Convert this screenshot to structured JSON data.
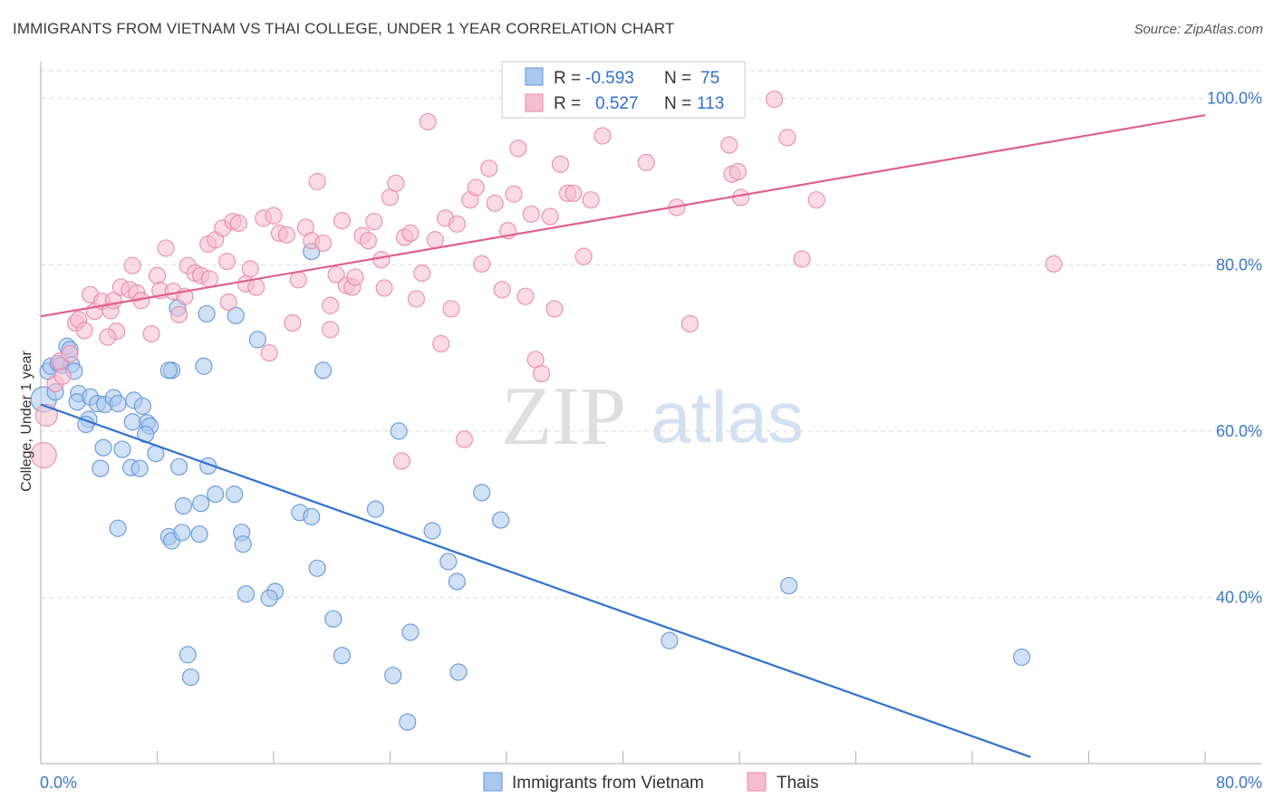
{
  "header": {
    "title": "IMMIGRANTS FROM VIETNAM VS THAI COLLEGE, UNDER 1 YEAR CORRELATION CHART",
    "source": "Source: ZipAtlas.com"
  },
  "watermark": {
    "zip": "ZIP",
    "atlas": "atlas"
  },
  "legend_box": {
    "rows": [
      {
        "r_label": "R =",
        "r_value": "-0.593",
        "n_label": "N =",
        "n_value": "75"
      },
      {
        "r_label": "R =",
        "r_value": "0.527",
        "n_label": "N =",
        "n_value": "113"
      }
    ]
  },
  "bottom_legend": {
    "items": [
      "Immigrants from Vietnam",
      "Thais"
    ]
  },
  "colors": {
    "blue_fill": "#a9c8ef",
    "blue_stroke": "#5e95d9",
    "blue_line": "#2f72d0",
    "pink_fill": "#f6bcd0",
    "pink_stroke": "#e889ab",
    "pink_line": "#e0608c",
    "tick_text": "#3a78c9",
    "grid": "#dddddd"
  },
  "chart_data": {
    "type": "scatter",
    "title": "IMMIGRANTS FROM VIETNAM VS THAI COLLEGE, UNDER 1 YEAR CORRELATION CHART",
    "xlabel": "",
    "ylabel": "College, Under 1 year",
    "xlim": [
      0,
      80
    ],
    "ylim": [
      20,
      104
    ],
    "x_tick_labels": [
      "0.0%",
      "80.0%"
    ],
    "y_ticks": [
      40,
      60,
      80,
      100
    ],
    "y_tick_labels": [
      "40.0%",
      "60.0%",
      "80.0%",
      "100.0%"
    ],
    "grid": true,
    "legend_position": "top-center",
    "series": [
      {
        "name": "Immigrants from Vietnam",
        "r": -0.593,
        "n": 75,
        "trend": {
          "x": [
            0,
            68
          ],
          "y": [
            63.2,
            20.8
          ]
        },
        "points": [
          [
            0.2,
            63.8,
            14
          ],
          [
            0.5,
            67.2,
            9
          ],
          [
            0.7,
            67.8,
            9
          ],
          [
            1.2,
            68.1,
            9
          ],
          [
            1.4,
            67.9,
            9
          ],
          [
            1.8,
            70.2,
            9
          ],
          [
            2.0,
            69.8,
            9
          ],
          [
            2.1,
            68.0,
            9
          ],
          [
            2.3,
            67.2,
            9
          ],
          [
            1.0,
            64.7,
            9
          ],
          [
            2.6,
            64.5,
            9
          ],
          [
            2.5,
            63.5,
            9
          ],
          [
            3.3,
            61.4,
            9
          ],
          [
            3.4,
            64.1,
            9
          ],
          [
            3.9,
            63.3,
            9
          ],
          [
            3.1,
            60.8,
            9
          ],
          [
            4.4,
            63.2,
            9
          ],
          [
            5.0,
            64.0,
            9
          ],
          [
            5.3,
            63.3,
            9
          ],
          [
            6.4,
            63.7,
            9
          ],
          [
            7.0,
            63.0,
            9
          ],
          [
            7.3,
            61.0,
            9
          ],
          [
            7.5,
            60.6,
            9
          ],
          [
            7.2,
            59.6,
            9
          ],
          [
            6.3,
            61.1,
            9
          ],
          [
            4.3,
            58.0,
            9
          ],
          [
            5.6,
            57.8,
            9
          ],
          [
            7.9,
            57.3,
            9
          ],
          [
            4.1,
            55.5,
            9
          ],
          [
            6.2,
            55.6,
            9
          ],
          [
            6.8,
            55.5,
            9
          ],
          [
            9.5,
            55.7,
            9
          ],
          [
            11.5,
            55.8,
            9
          ],
          [
            12.0,
            52.4,
            9
          ],
          [
            11.0,
            51.3,
            9
          ],
          [
            13.3,
            52.4,
            9
          ],
          [
            9.8,
            51.0,
            9
          ],
          [
            5.3,
            48.3,
            9
          ],
          [
            8.8,
            47.3,
            9
          ],
          [
            9.0,
            46.8,
            9
          ],
          [
            9.7,
            47.8,
            9
          ],
          [
            10.9,
            47.6,
            9
          ],
          [
            13.8,
            47.8,
            9
          ],
          [
            13.9,
            46.4,
            9
          ],
          [
            17.8,
            50.2,
            9
          ],
          [
            18.6,
            49.7,
            9
          ],
          [
            23.0,
            50.6,
            9
          ],
          [
            26.9,
            48.0,
            9
          ],
          [
            30.3,
            52.6,
            9
          ],
          [
            31.6,
            49.3,
            9
          ],
          [
            24.6,
            60.0,
            9
          ],
          [
            19.0,
            43.5,
            9
          ],
          [
            16.1,
            40.7,
            9
          ],
          [
            28.0,
            44.3,
            9
          ],
          [
            28.6,
            41.9,
            9
          ],
          [
            14.1,
            40.4,
            9
          ],
          [
            15.7,
            39.9,
            9
          ],
          [
            20.1,
            37.4,
            9
          ],
          [
            25.4,
            35.8,
            9
          ],
          [
            10.1,
            33.1,
            9
          ],
          [
            10.3,
            30.4,
            9
          ],
          [
            20.7,
            33.0,
            9
          ],
          [
            24.2,
            30.6,
            9
          ],
          [
            28.7,
            31.0,
            9
          ],
          [
            43.2,
            34.8,
            9
          ],
          [
            51.4,
            41.4,
            9
          ],
          [
            67.4,
            32.8,
            9
          ],
          [
            25.2,
            25.0,
            9
          ],
          [
            9.0,
            67.3,
            9
          ],
          [
            11.2,
            67.8,
            9
          ],
          [
            8.8,
            67.3,
            9
          ],
          [
            14.9,
            71.0,
            9
          ],
          [
            19.4,
            67.3,
            9
          ],
          [
            11.4,
            74.1,
            9
          ],
          [
            13.4,
            73.9,
            9
          ],
          [
            9.4,
            74.8,
            9
          ],
          [
            18.6,
            81.6,
            9
          ]
        ]
      },
      {
        "name": "Thais",
        "r": 0.527,
        "n": 113,
        "trend": {
          "x": [
            0,
            80
          ],
          "y": [
            73.8,
            98.0
          ]
        },
        "points": [
          [
            0.2,
            57.1,
            14
          ],
          [
            0.4,
            61.9,
            12
          ],
          [
            1.0,
            65.7,
            9
          ],
          [
            1.5,
            66.6,
            9
          ],
          [
            1.3,
            68.4,
            9
          ],
          [
            2.0,
            69.3,
            9
          ],
          [
            2.4,
            73.0,
            9
          ],
          [
            2.6,
            73.4,
            9
          ],
          [
            3.4,
            76.4,
            9
          ],
          [
            3.7,
            74.4,
            9
          ],
          [
            4.2,
            75.6,
            9
          ],
          [
            4.8,
            74.5,
            9
          ],
          [
            5.0,
            75.7,
            9
          ],
          [
            5.5,
            77.3,
            9
          ],
          [
            6.1,
            77.0,
            9
          ],
          [
            6.6,
            76.6,
            9
          ],
          [
            6.9,
            75.7,
            9
          ],
          [
            6.3,
            79.9,
            9
          ],
          [
            7.6,
            71.7,
            9
          ],
          [
            8.0,
            78.7,
            9
          ],
          [
            8.2,
            76.9,
            9
          ],
          [
            8.6,
            82.0,
            9
          ],
          [
            9.1,
            76.8,
            9
          ],
          [
            9.5,
            74.0,
            9
          ],
          [
            9.9,
            76.2,
            9
          ],
          [
            10.1,
            79.9,
            9
          ],
          [
            10.6,
            79.0,
            9
          ],
          [
            11.0,
            78.7,
            9
          ],
          [
            11.5,
            82.5,
            9
          ],
          [
            12.0,
            83.0,
            9
          ],
          [
            12.5,
            84.4,
            9
          ],
          [
            12.9,
            75.5,
            9
          ],
          [
            13.2,
            85.2,
            9
          ],
          [
            13.6,
            85.0,
            9
          ],
          [
            14.1,
            77.7,
            9
          ],
          [
            14.4,
            79.5,
            9
          ],
          [
            14.8,
            77.3,
            9
          ],
          [
            15.3,
            85.6,
            9
          ],
          [
            15.7,
            69.4,
            9
          ],
          [
            16.0,
            85.9,
            9
          ],
          [
            16.4,
            83.8,
            9
          ],
          [
            16.9,
            83.6,
            9
          ],
          [
            17.3,
            73.0,
            9
          ],
          [
            17.7,
            78.2,
            9
          ],
          [
            18.2,
            84.5,
            9
          ],
          [
            18.6,
            82.9,
            9
          ],
          [
            19.0,
            90.0,
            9
          ],
          [
            19.4,
            82.6,
            9
          ],
          [
            19.9,
            72.2,
            9
          ],
          [
            20.3,
            78.8,
            9
          ],
          [
            20.7,
            85.3,
            9
          ],
          [
            21.0,
            77.5,
            9
          ],
          [
            21.4,
            77.3,
            9
          ],
          [
            21.6,
            78.5,
            9
          ],
          [
            22.1,
            83.5,
            9
          ],
          [
            22.5,
            82.9,
            9
          ],
          [
            22.9,
            85.2,
            9
          ],
          [
            23.4,
            80.6,
            9
          ],
          [
            23.6,
            77.2,
            9
          ],
          [
            24.0,
            88.1,
            9
          ],
          [
            24.4,
            89.8,
            9
          ],
          [
            24.8,
            56.4,
            9
          ],
          [
            25.0,
            83.3,
            9
          ],
          [
            25.4,
            83.8,
            9
          ],
          [
            25.8,
            75.9,
            9
          ],
          [
            26.2,
            79.0,
            9
          ],
          [
            26.6,
            97.2,
            9
          ],
          [
            27.1,
            83.0,
            9
          ],
          [
            27.5,
            70.5,
            9
          ],
          [
            27.8,
            85.6,
            9
          ],
          [
            28.2,
            74.7,
            9
          ],
          [
            28.6,
            84.9,
            9
          ],
          [
            29.1,
            59.0,
            9
          ],
          [
            29.5,
            87.8,
            9
          ],
          [
            29.9,
            89.3,
            9
          ],
          [
            30.3,
            80.1,
            9
          ],
          [
            30.8,
            91.6,
            9
          ],
          [
            31.2,
            87.4,
            9
          ],
          [
            31.7,
            77.0,
            9
          ],
          [
            32.1,
            84.1,
            9
          ],
          [
            32.5,
            88.5,
            9
          ],
          [
            32.8,
            94.0,
            9
          ],
          [
            33.3,
            76.2,
            9
          ],
          [
            33.7,
            86.1,
            9
          ],
          [
            34.0,
            68.6,
            9
          ],
          [
            34.4,
            66.9,
            9
          ],
          [
            35.0,
            85.8,
            9
          ],
          [
            35.3,
            74.7,
            9
          ],
          [
            35.7,
            92.1,
            9
          ],
          [
            36.2,
            88.6,
            9
          ],
          [
            36.6,
            88.6,
            9
          ],
          [
            37.3,
            81.0,
            9
          ],
          [
            37.8,
            87.8,
            9
          ],
          [
            38.6,
            95.5,
            9
          ],
          [
            40.2,
            98.9,
            9
          ],
          [
            41.6,
            92.3,
            9
          ],
          [
            43.7,
            86.9,
            9
          ],
          [
            44.6,
            72.9,
            9
          ],
          [
            47.5,
            90.9,
            9
          ],
          [
            47.9,
            91.2,
            9
          ],
          [
            48.1,
            88.1,
            9
          ],
          [
            47.3,
            94.4,
            9
          ],
          [
            50.4,
            99.9,
            9
          ],
          [
            51.3,
            95.3,
            9
          ],
          [
            52.3,
            80.7,
            9
          ],
          [
            53.3,
            87.8,
            9
          ],
          [
            69.6,
            80.1,
            9
          ],
          [
            5.2,
            72.0,
            9
          ],
          [
            4.6,
            71.3,
            9
          ],
          [
            3.0,
            72.1,
            9
          ],
          [
            11.6,
            78.3,
            9
          ],
          [
            12.8,
            80.4,
            9
          ],
          [
            19.9,
            75.1,
            9
          ]
        ]
      }
    ]
  },
  "axis": {
    "ylabel": "College, Under 1 year",
    "x_left": "0.0%",
    "x_right": "80.0%"
  }
}
